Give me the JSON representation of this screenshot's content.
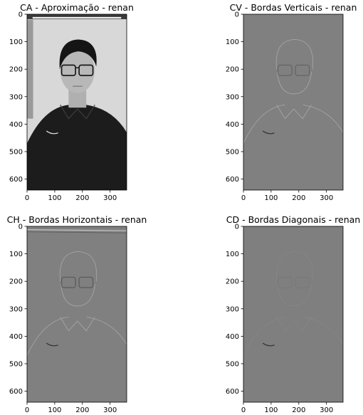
{
  "chart_data": [
    {
      "type": "image",
      "title": "CA - Aproximação - renan",
      "content": "grayscale portrait",
      "background_gray": "#2a2a2a",
      "xlim": [
        0,
        360
      ],
      "ylim": [
        640,
        0
      ],
      "xticks": [
        0,
        100,
        200,
        300
      ],
      "yticks": [
        0,
        100,
        200,
        300,
        400,
        500,
        600
      ]
    },
    {
      "type": "image",
      "title": "CV - Bordas Verticais - renan",
      "content": "vertical edge map",
      "background_gray": "#808080",
      "xlim": [
        0,
        360
      ],
      "ylim": [
        640,
        0
      ],
      "xticks": [
        0,
        100,
        200,
        300
      ],
      "yticks": [
        0,
        100,
        200,
        300,
        400,
        500,
        600
      ]
    },
    {
      "type": "image",
      "title": "CH - Bordas Horizontais - renan",
      "content": "horizontal edge map",
      "background_gray": "#808080",
      "xlim": [
        0,
        360
      ],
      "ylim": [
        640,
        0
      ],
      "xticks": [
        0,
        100,
        200,
        300
      ],
      "yticks": [
        0,
        100,
        200,
        300,
        400,
        500,
        600
      ]
    },
    {
      "type": "image",
      "title": "CD - Bordas Diagonais - renan",
      "content": "diagonal edge map",
      "background_gray": "#7f7f7f",
      "xlim": [
        0,
        360
      ],
      "ylim": [
        640,
        0
      ],
      "xticks": [
        0,
        100,
        200,
        300
      ],
      "yticks": [
        0,
        100,
        200,
        300,
        400,
        500,
        600
      ]
    }
  ]
}
